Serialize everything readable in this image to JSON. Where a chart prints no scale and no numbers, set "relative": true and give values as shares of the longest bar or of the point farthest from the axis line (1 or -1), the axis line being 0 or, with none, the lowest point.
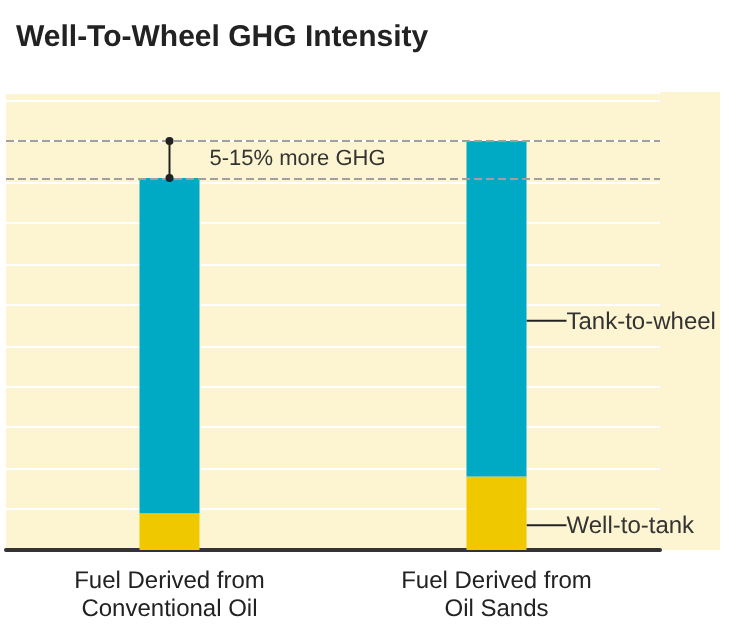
{
  "chart_data": {
    "type": "bar",
    "title": "Well-To-Wheel GHG Intensity",
    "categories": [
      "Fuel Derived from\nConventional Oil",
      "Fuel Derived from\nOil Sands"
    ],
    "stacked": true,
    "relative": true,
    "grid": "y",
    "legend": false,
    "series": [
      {
        "name": "Well-to-tank",
        "color": "#f0c800",
        "values": [
          0.09,
          0.18
        ]
      },
      {
        "name": "Tank-to-wheel",
        "color": "#00a9c4",
        "values": [
          0.82,
          0.82
        ]
      }
    ],
    "ref_lines": [
      {
        "axis": "y",
        "value": 0.91,
        "color": "#a0a0a0",
        "line_style": "dashed"
      },
      {
        "axis": "y",
        "value": 1,
        "color": "#a0a0a0",
        "line_style": "dashed"
      }
    ],
    "annotations": [
      "5-15% more GHG"
    ]
  }
}
